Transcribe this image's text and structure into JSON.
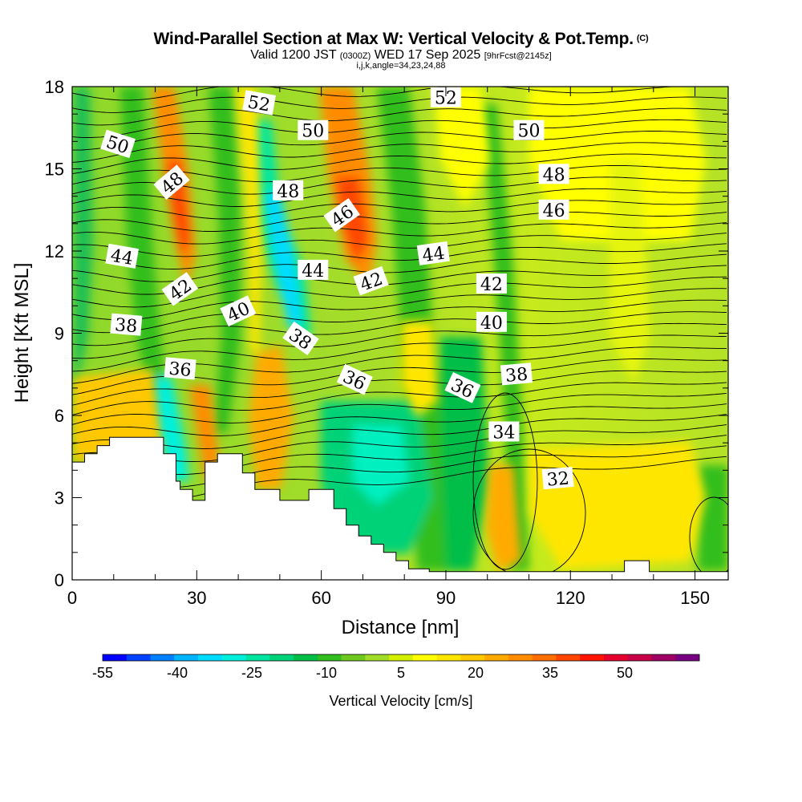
{
  "title": {
    "main": "Wind-Parallel Section at Max W: Vertical Velocity & Pot.Temp.",
    "copyright": "(C)",
    "valid_prefix": "Valid 1200 JST",
    "valid_z": "(0300Z)",
    "valid_suffix": "WED 17 Sep 2025",
    "forecast": "[9hrFcst@2145z]",
    "ijk": "i,j,k,angle=34,23,24,88"
  },
  "chart_data": {
    "type": "heatmap",
    "xlabel": "Distance [nm]",
    "ylabel": "Height [Kft MSL]",
    "xlim": [
      0,
      158
    ],
    "ylim": [
      0,
      18
    ],
    "x_ticks": [
      "0",
      "30",
      "60",
      "90",
      "120",
      "150"
    ],
    "x_tick_values": [
      0,
      30,
      60,
      90,
      120,
      150
    ],
    "y_ticks": [
      "0",
      "3",
      "6",
      "9",
      "12",
      "15",
      "18"
    ],
    "y_tick_values": [
      0,
      3,
      6,
      9,
      12,
      15,
      18
    ],
    "colorbar": {
      "label": "Vertical Velocity [cm/s]",
      "range": [
        -55,
        65
      ],
      "step": 5,
      "tick_labels": [
        "-55",
        "-40",
        "-25",
        "-10",
        "5",
        "20",
        "35",
        "50"
      ],
      "tick_values": [
        -55,
        -40,
        -25,
        -10,
        5,
        20,
        35,
        50
      ],
      "colors": [
        "#0000ff",
        "#0040ff",
        "#0080ff",
        "#00b4ff",
        "#00dcff",
        "#00f0dc",
        "#00e6a0",
        "#00d278",
        "#00be46",
        "#32be1e",
        "#6ec81e",
        "#a0dc28",
        "#d2f000",
        "#ffff00",
        "#ffe600",
        "#ffc800",
        "#ffaa00",
        "#ff8c00",
        "#ff6e00",
        "#ff4600",
        "#ff1400",
        "#e6002d",
        "#c80046",
        "#a00064",
        "#780082"
      ]
    },
    "terrain_kft": [
      [
        0,
        4.3
      ],
      [
        3,
        4.3
      ],
      [
        3,
        4.6
      ],
      [
        6,
        4.6
      ],
      [
        6,
        4.9
      ],
      [
        9,
        4.9
      ],
      [
        9,
        5.2
      ],
      [
        22,
        5.2
      ],
      [
        22,
        4.6
      ],
      [
        25,
        4.6
      ],
      [
        25,
        3.6
      ],
      [
        26,
        3.6
      ],
      [
        26,
        3.3
      ],
      [
        29,
        3.3
      ],
      [
        29,
        2.9
      ],
      [
        32,
        2.9
      ],
      [
        32,
        4.3
      ],
      [
        35,
        4.3
      ],
      [
        35,
        4.6
      ],
      [
        41,
        4.6
      ],
      [
        41,
        3.9
      ],
      [
        44,
        3.9
      ],
      [
        44,
        3.3
      ],
      [
        50,
        3.3
      ],
      [
        50,
        2.9
      ],
      [
        57,
        2.9
      ],
      [
        57,
        3.3
      ],
      [
        63,
        3.3
      ],
      [
        63,
        2.6
      ],
      [
        66,
        2.6
      ],
      [
        66,
        2.0
      ],
      [
        69,
        2.0
      ],
      [
        69,
        1.6
      ],
      [
        72,
        1.6
      ],
      [
        72,
        1.3
      ],
      [
        75,
        1.3
      ],
      [
        75,
        1.0
      ],
      [
        78,
        1.0
      ],
      [
        78,
        0.7
      ],
      [
        81,
        0.7
      ],
      [
        81,
        0.4
      ],
      [
        86,
        0.4
      ],
      [
        86,
        0.3
      ],
      [
        133,
        0.3
      ],
      [
        133,
        0.7
      ],
      [
        139,
        0.7
      ],
      [
        139,
        0.3
      ],
      [
        158,
        0.3
      ]
    ],
    "theta_contours_labels": [
      {
        "text": "52",
        "x": 45,
        "y": 17.4,
        "angle": 10
      },
      {
        "text": "52",
        "x": 90,
        "y": 17.6,
        "angle": 0
      },
      {
        "text": "50",
        "x": 11,
        "y": 15.9,
        "angle": 18
      },
      {
        "text": "50",
        "x": 58,
        "y": 16.4,
        "angle": 0
      },
      {
        "text": "50",
        "x": 110,
        "y": 16.4,
        "angle": 0
      },
      {
        "text": "48",
        "x": 24,
        "y": 14.5,
        "angle": -40
      },
      {
        "text": "48",
        "x": 52,
        "y": 14.2,
        "angle": 0
      },
      {
        "text": "48",
        "x": 116,
        "y": 14.8,
        "angle": 0
      },
      {
        "text": "46",
        "x": 65,
        "y": 13.3,
        "angle": -35
      },
      {
        "text": "46",
        "x": 116,
        "y": 13.5,
        "angle": 0
      },
      {
        "text": "44",
        "x": 12,
        "y": 11.8,
        "angle": 10
      },
      {
        "text": "44",
        "x": 58,
        "y": 11.3,
        "angle": 0
      },
      {
        "text": "44",
        "x": 87,
        "y": 11.9,
        "angle": -8
      },
      {
        "text": "42",
        "x": 26,
        "y": 10.6,
        "angle": -35
      },
      {
        "text": "42",
        "x": 72,
        "y": 10.9,
        "angle": -20
      },
      {
        "text": "42",
        "x": 101,
        "y": 10.8,
        "angle": 0
      },
      {
        "text": "40",
        "x": 40,
        "y": 9.8,
        "angle": -25
      },
      {
        "text": "40",
        "x": 101,
        "y": 9.4,
        "angle": 0
      },
      {
        "text": "38",
        "x": 13,
        "y": 9.3,
        "angle": 5
      },
      {
        "text": "38",
        "x": 55,
        "y": 8.8,
        "angle": 35
      },
      {
        "text": "38",
        "x": 107,
        "y": 7.5,
        "angle": -5
      },
      {
        "text": "36",
        "x": 26,
        "y": 7.7,
        "angle": 5
      },
      {
        "text": "36",
        "x": 68,
        "y": 7.3,
        "angle": 25
      },
      {
        "text": "36",
        "x": 94,
        "y": 7.0,
        "angle": 25
      },
      {
        "text": "34",
        "x": 104,
        "y": 5.4,
        "angle": 0
      },
      {
        "text": "32",
        "x": 117,
        "y": 3.7,
        "angle": -5
      }
    ]
  }
}
